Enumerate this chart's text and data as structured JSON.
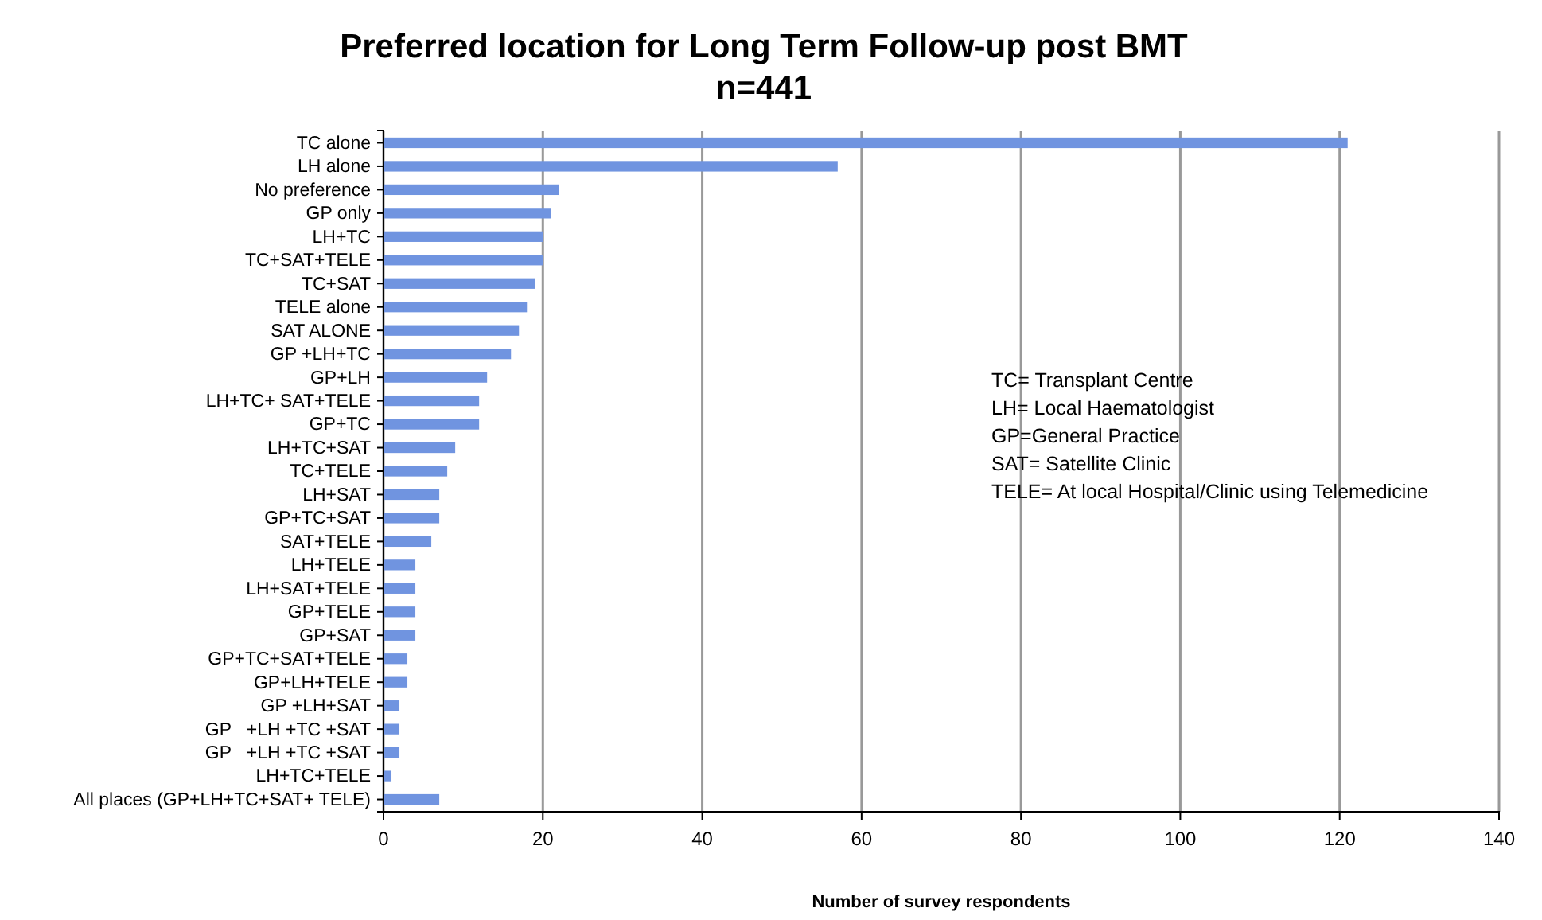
{
  "chart_data": {
    "type": "bar",
    "orientation": "horizontal",
    "title": "Preferred location for Long Term Follow-up post BMT",
    "subtitle": "n=441",
    "xlabel": "Number of survey respondents",
    "categories": [
      "TC alone",
      "LH alone",
      "No preference",
      "GP only",
      "LH+TC",
      "TC+SAT+TELE",
      "TC+SAT",
      "TELE alone",
      "SAT ALONE",
      "GP +LH+TC",
      "GP+LH",
      "LH+TC+ SAT+TELE",
      "GP+TC",
      "LH+TC+SAT",
      "TC+TELE",
      "LH+SAT",
      "GP+TC+SAT",
      "SAT+TELE",
      "LH+TELE",
      "LH+SAT+TELE",
      "GP+TELE",
      "GP+SAT",
      "GP+TC+SAT+TELE",
      "GP+LH+TELE",
      "GP +LH+SAT",
      "GP   +LH +TC +SAT",
      "GP   +LH +TC +SAT",
      "LH+TC+TELE",
      "All places (GP+LH+TC+SAT+ TELE)"
    ],
    "values": [
      121,
      57,
      22,
      21,
      20,
      20,
      19,
      18,
      17,
      16,
      13,
      12,
      12,
      9,
      8,
      7,
      7,
      6,
      4,
      4,
      4,
      4,
      3,
      3,
      2,
      2,
      2,
      1,
      7
    ],
    "color": "#7094e0",
    "xlim": [
      0,
      140
    ],
    "xticks": [
      0,
      20,
      40,
      60,
      80,
      100,
      120,
      140
    ],
    "grid": "x",
    "annotations": [
      "TC= Transplant Centre",
      "LH= Local Haematologist",
      "GP=General Practice",
      "SAT= Satellite Clinic",
      "TELE= At local Hospital/Clinic using Telemedicine"
    ]
  }
}
